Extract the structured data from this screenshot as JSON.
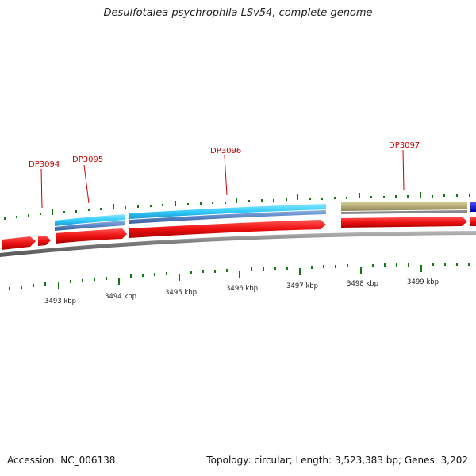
{
  "title": "Desulfotalea psychrophila LSv54, complete genome",
  "accession": "Accession: NC_006138",
  "topology": "Topology: circular; Length: 3,523,383 bp; Genes: 3,202",
  "colors": {
    "cds": "#ee1111",
    "cyan": "#33ccff",
    "steel": "#5a85c8",
    "khaki": "#b5ae78",
    "blue": "#1111dd",
    "backbone": "#888888",
    "ticks": "#117711",
    "labels": "#cc0000"
  },
  "genes": [
    "DP3094",
    "DP3095",
    "DP3096",
    "DP3097"
  ],
  "kbp_ticks": [
    "3493 kbp",
    "3494 kbp",
    "3495 kbp",
    "3496 kbp",
    "3497 kbp",
    "3498 kbp",
    "3499 kbp"
  ]
}
